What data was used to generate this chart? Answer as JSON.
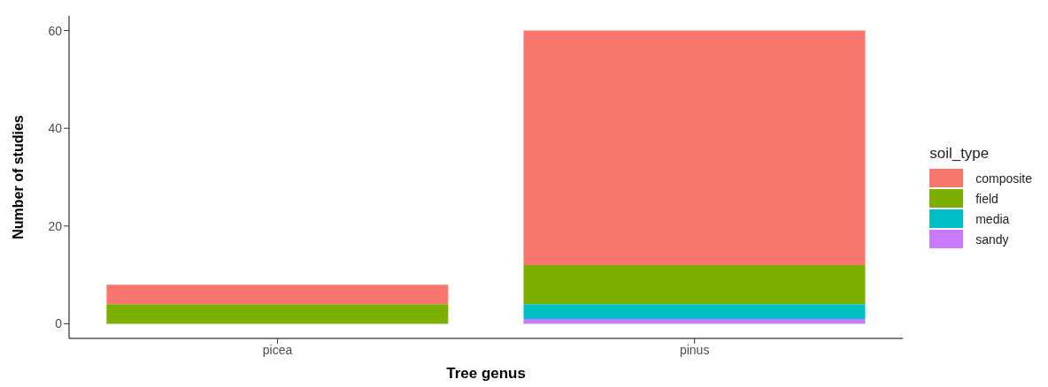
{
  "chart_data": {
    "type": "bar",
    "xlabel": "Tree genus",
    "ylabel": "Number of studies",
    "legend_title": "soil_type",
    "categories": [
      "picea",
      "pinus"
    ],
    "stacked": true,
    "series": [
      {
        "name": "sandy",
        "color": "#c77cff",
        "values": [
          null,
          1
        ]
      },
      {
        "name": "media",
        "color": "#00bfc4",
        "values": [
          null,
          3
        ]
      },
      {
        "name": "field",
        "color": "#7cae00",
        "values": [
          4,
          8
        ]
      },
      {
        "name": "composite",
        "color": "#f8766d",
        "values": [
          4,
          48
        ]
      }
    ],
    "ylim": [
      -3,
      63
    ],
    "yticks": [
      0,
      20,
      40,
      60
    ],
    "grid": false,
    "legend": "right"
  }
}
